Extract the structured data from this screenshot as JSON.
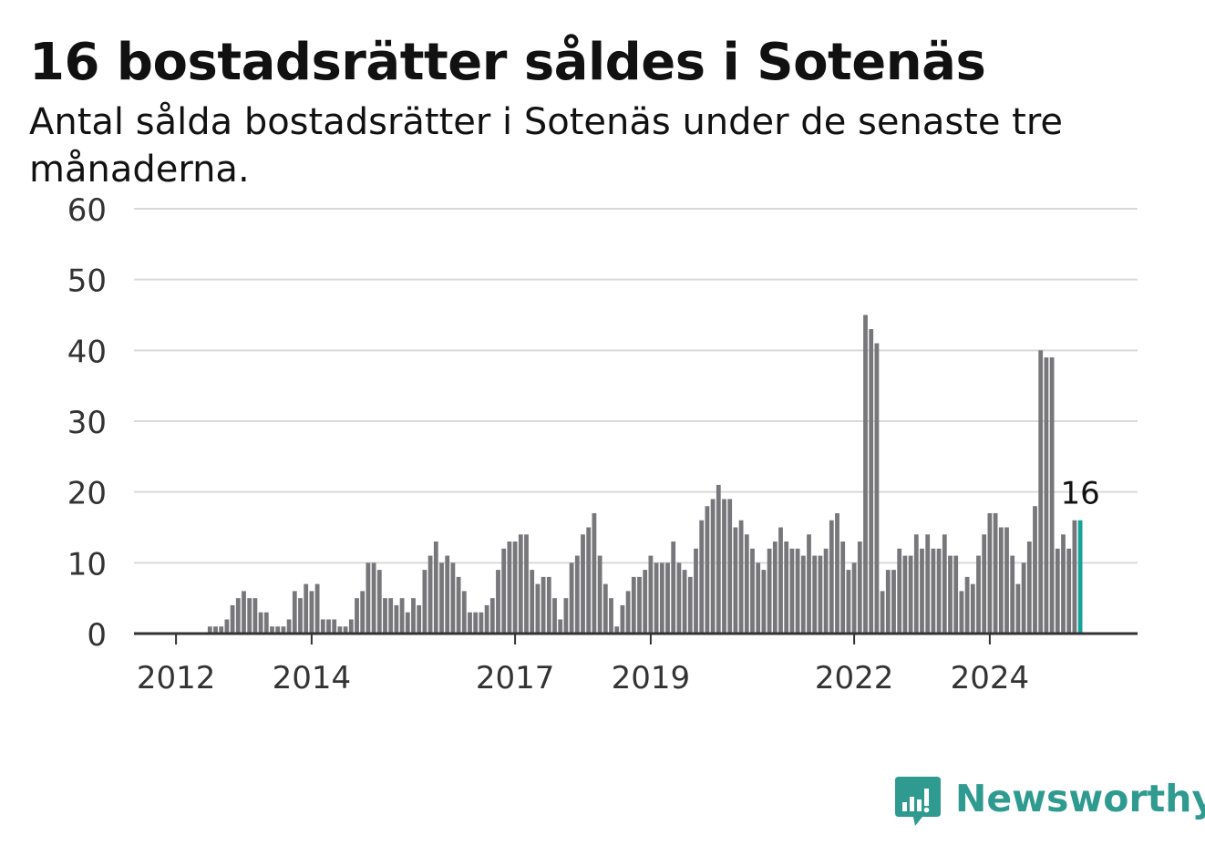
{
  "header": {
    "title": "16 bostadsrätter såldes i Sotenäs",
    "subtitle": "Antal sålda bostadsrätter i Sotenäs under de senaste tre månaderna."
  },
  "brand": {
    "name": "Newsworthy",
    "color": "#2f9a8f"
  },
  "colors": {
    "bar": "#77777b",
    "highlight": "#17a39a",
    "grid": "#d9d9d9",
    "axis": "#333333"
  },
  "chart_data": {
    "type": "bar",
    "title": "16 bostadsrätter såldes i Sotenäs",
    "subtitle": "Antal sålda bostadsrätter i Sotenäs under de senaste tre månaderna.",
    "xlabel": "",
    "ylabel": "",
    "ylim": [
      0,
      60
    ],
    "yticks": [
      0,
      10,
      20,
      30,
      40,
      50,
      60
    ],
    "xticks": [
      "2012",
      "2014",
      "2017",
      "2019",
      "2022",
      "2024"
    ],
    "grid": true,
    "x_start_month": "2011-10",
    "values": [
      0,
      0,
      0,
      0,
      0,
      0,
      0,
      0,
      0,
      1,
      1,
      1,
      2,
      4,
      5,
      6,
      5,
      5,
      3,
      3,
      1,
      1,
      1,
      2,
      6,
      5,
      7,
      6,
      7,
      2,
      2,
      2,
      1,
      1,
      2,
      5,
      6,
      10,
      10,
      9,
      5,
      5,
      4,
      5,
      3,
      5,
      4,
      9,
      11,
      13,
      10,
      11,
      10,
      8,
      6,
      3,
      3,
      3,
      4,
      5,
      9,
      12,
      13,
      13,
      14,
      14,
      9,
      7,
      8,
      8,
      5,
      2,
      5,
      10,
      11,
      14,
      15,
      17,
      11,
      7,
      5,
      1,
      4,
      6,
      8,
      8,
      9,
      11,
      10,
      10,
      10,
      13,
      10,
      9,
      8,
      12,
      16,
      18,
      19,
      21,
      19,
      19,
      15,
      16,
      14,
      12,
      10,
      9,
      12,
      13,
      15,
      13,
      12,
      12,
      11,
      14,
      11,
      11,
      12,
      16,
      17,
      13,
      9,
      10,
      13,
      45,
      43,
      41,
      6,
      9,
      9,
      12,
      11,
      11,
      14,
      12,
      14,
      12,
      12,
      14,
      11,
      11,
      6,
      8,
      7,
      11,
      14,
      17,
      17,
      15,
      15,
      11,
      7,
      10,
      13,
      18,
      40,
      39,
      39,
      12,
      14,
      12,
      16,
      16
    ],
    "highlight_last": true,
    "annotation": {
      "label": "16",
      "value": 16
    }
  }
}
